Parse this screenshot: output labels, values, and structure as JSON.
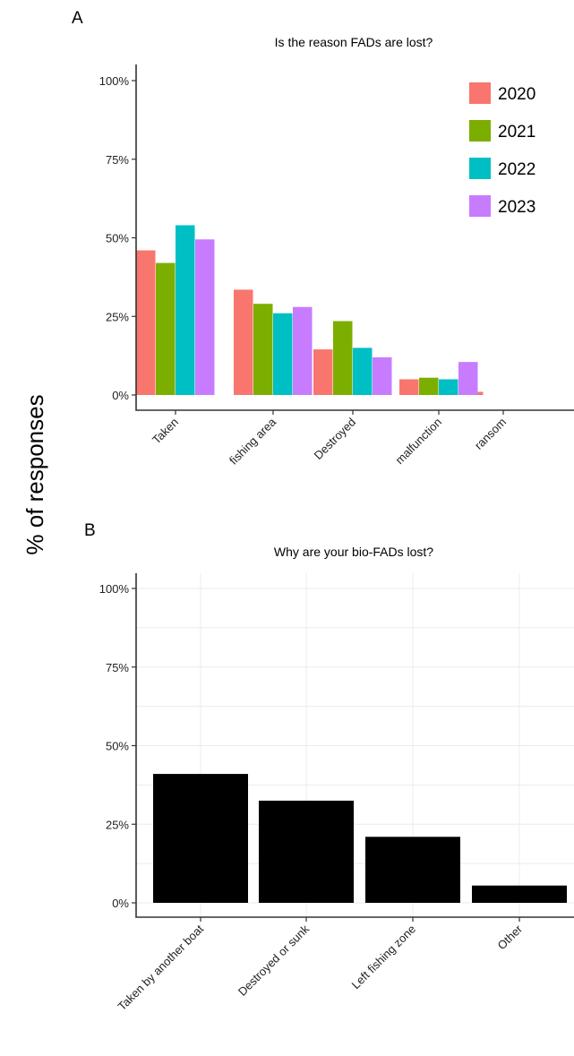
{
  "figure": {
    "ylabel": "% of responses"
  },
  "chart_data": [
    {
      "type": "bar",
      "panel": "A",
      "title": "Is the reason FADs are lost?",
      "categories": [
        "Taken",
        "fishing area",
        "Destroyed",
        "malfunction",
        "ransom"
      ],
      "series": [
        {
          "name": "2020",
          "color": "#F8766D",
          "values": [
            46,
            33.5,
            14.5,
            5,
            1
          ]
        },
        {
          "name": "2021",
          "color": "#7CAE00",
          "values": [
            42,
            29,
            23.5,
            5.5,
            0
          ]
        },
        {
          "name": "2022",
          "color": "#00BFC4",
          "values": [
            54,
            26,
            15,
            5,
            0
          ]
        },
        {
          "name": "2023",
          "color": "#C77CFF",
          "values": [
            49.5,
            28,
            12,
            10.5,
            0
          ]
        }
      ],
      "ylim": [
        0,
        100
      ],
      "yticks": [
        "0%",
        "25%",
        "50%",
        "75%",
        "100%"
      ],
      "legend_position": "top-right",
      "grid": false
    },
    {
      "type": "bar",
      "panel": "B",
      "title": "Why are your bio-FADs lost?",
      "categories": [
        "Taken by another boat",
        "Destroyed or sunk",
        "Left fishing zone",
        "Other"
      ],
      "values": [
        41,
        32.5,
        21,
        5.5
      ],
      "bar_color": "#000000",
      "ylim": [
        0,
        100
      ],
      "yticks": [
        "0%",
        "25%",
        "50%",
        "75%",
        "100%"
      ],
      "grid": true
    }
  ]
}
